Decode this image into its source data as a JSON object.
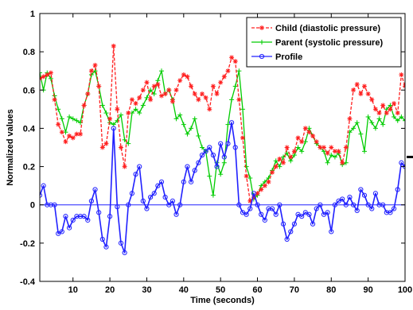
{
  "chart_data": {
    "type": "line",
    "title": "",
    "xlabel": "Time (seconds)",
    "ylabel": "Normalized values",
    "xlim": [
      1,
      100
    ],
    "ylim": [
      -0.4,
      1.0
    ],
    "xticks": [
      10,
      20,
      30,
      40,
      50,
      60,
      70,
      80,
      90,
      100
    ],
    "yticks": [
      -0.4,
      -0.2,
      0,
      0.2,
      0.4,
      0.6,
      0.8,
      1
    ],
    "ytick_labels": [
      "-0.4",
      "-0.2",
      "0",
      "0.2",
      "0.4",
      "0.6",
      "0.8",
      "1"
    ],
    "grid": false,
    "legend_position": "top-right",
    "baseline": 0,
    "colors": {
      "child": "#ff2020",
      "parent": "#00cc00",
      "profile": "#2020ff",
      "baseline": "#2020ff"
    },
    "series": [
      {
        "name": "Child (diastolic pressure)",
        "key": "child",
        "marker": "*",
        "style": "dashed",
        "x": [
          1,
          2,
          3,
          4,
          5,
          6,
          7,
          8,
          9,
          10,
          11,
          12,
          13,
          14,
          15,
          16,
          17,
          18,
          19,
          20,
          21,
          22,
          23,
          24,
          25,
          26,
          27,
          28,
          29,
          30,
          31,
          32,
          33,
          34,
          35,
          36,
          37,
          38,
          39,
          40,
          41,
          42,
          43,
          44,
          45,
          46,
          47,
          48,
          49,
          50,
          51,
          52,
          53,
          54,
          55,
          56,
          57,
          58,
          59,
          60,
          61,
          62,
          63,
          64,
          65,
          66,
          67,
          68,
          69,
          70,
          71,
          72,
          73,
          74,
          75,
          76,
          77,
          78,
          79,
          80,
          81,
          82,
          83,
          84,
          85,
          86,
          87,
          88,
          89,
          90,
          91,
          92,
          93,
          94,
          95,
          96,
          97,
          98,
          99,
          100
        ],
        "values": [
          0.66,
          0.67,
          0.68,
          0.69,
          0.55,
          0.42,
          0.38,
          0.33,
          0.36,
          0.35,
          0.37,
          0.37,
          0.52,
          0.58,
          0.7,
          0.73,
          0.62,
          0.3,
          0.32,
          0.45,
          0.83,
          0.5,
          0.3,
          0.2,
          0.48,
          0.55,
          0.53,
          0.56,
          0.6,
          0.64,
          0.55,
          0.62,
          0.63,
          0.57,
          0.58,
          0.6,
          0.54,
          0.6,
          0.65,
          0.68,
          0.67,
          0.62,
          0.58,
          0.55,
          0.58,
          0.56,
          0.5,
          0.62,
          0.58,
          0.64,
          0.67,
          0.7,
          0.77,
          0.75,
          0.55,
          0.35,
          0.15,
          0.02,
          0.04,
          0.06,
          0.08,
          0.1,
          0.12,
          0.17,
          0.2,
          0.24,
          0.22,
          0.3,
          0.25,
          0.28,
          0.35,
          0.33,
          0.4,
          0.38,
          0.36,
          0.33,
          0.3,
          0.3,
          0.27,
          0.3,
          0.28,
          0.28,
          0.22,
          0.3,
          0.45,
          0.6,
          0.63,
          0.58,
          0.62,
          0.58,
          0.55,
          0.5,
          0.48,
          0.52,
          0.48,
          0.5,
          0.53,
          0.48,
          0.68,
          0.62
        ]
      },
      {
        "name": "Parent (systolic pressure)",
        "key": "parent",
        "marker": "+",
        "style": "solid",
        "x": [
          1,
          2,
          3,
          4,
          5,
          6,
          7,
          8,
          9,
          10,
          11,
          12,
          13,
          14,
          15,
          16,
          17,
          18,
          19,
          20,
          21,
          22,
          23,
          24,
          25,
          26,
          27,
          28,
          29,
          30,
          31,
          32,
          33,
          34,
          35,
          36,
          37,
          38,
          39,
          40,
          41,
          42,
          43,
          44,
          45,
          46,
          47,
          48,
          49,
          50,
          51,
          52,
          53,
          54,
          55,
          56,
          57,
          58,
          59,
          60,
          61,
          62,
          63,
          64,
          65,
          66,
          67,
          68,
          69,
          70,
          71,
          72,
          73,
          74,
          75,
          76,
          77,
          78,
          79,
          80,
          81,
          82,
          83,
          84,
          85,
          86,
          87,
          88,
          89,
          90,
          91,
          92,
          93,
          94,
          95,
          96,
          97,
          98,
          99,
          100
        ],
        "values": [
          0.69,
          0.6,
          0.69,
          0.66,
          0.57,
          0.5,
          0.45,
          0.38,
          0.46,
          0.45,
          0.44,
          0.43,
          0.52,
          0.58,
          0.68,
          0.7,
          0.62,
          0.52,
          0.48,
          0.43,
          0.42,
          0.44,
          0.47,
          0.34,
          0.32,
          0.48,
          0.5,
          0.48,
          0.52,
          0.56,
          0.6,
          0.58,
          0.65,
          0.7,
          0.58,
          0.6,
          0.55,
          0.45,
          0.47,
          0.42,
          0.37,
          0.4,
          0.45,
          0.36,
          0.3,
          0.28,
          0.15,
          0.05,
          0.22,
          0.16,
          0.22,
          0.42,
          0.55,
          0.62,
          0.7,
          0.5,
          0.2,
          0.14,
          0.03,
          0.05,
          0.1,
          0.12,
          0.14,
          0.18,
          0.23,
          0.2,
          0.25,
          0.27,
          0.23,
          0.26,
          0.3,
          0.28,
          0.33,
          0.4,
          0.36,
          0.32,
          0.3,
          0.28,
          0.22,
          0.26,
          0.25,
          0.27,
          0.21,
          0.22,
          0.38,
          0.4,
          0.43,
          0.37,
          0.28,
          0.46,
          0.43,
          0.4,
          0.45,
          0.42,
          0.5,
          0.52,
          0.46,
          0.44,
          0.46,
          0.44
        ]
      },
      {
        "name": "Profile",
        "key": "profile",
        "marker": "o",
        "style": "solid",
        "x": [
          1,
          2,
          3,
          4,
          5,
          6,
          7,
          8,
          9,
          10,
          11,
          12,
          13,
          14,
          15,
          16,
          17,
          18,
          19,
          20,
          21,
          22,
          23,
          24,
          25,
          26,
          27,
          28,
          29,
          30,
          31,
          32,
          33,
          34,
          35,
          36,
          37,
          38,
          39,
          40,
          41,
          42,
          43,
          44,
          45,
          46,
          47,
          48,
          49,
          50,
          51,
          52,
          53,
          54,
          55,
          56,
          57,
          58,
          59,
          60,
          61,
          62,
          63,
          64,
          65,
          66,
          67,
          68,
          69,
          70,
          71,
          72,
          73,
          74,
          75,
          76,
          77,
          78,
          79,
          80,
          81,
          82,
          83,
          84,
          85,
          86,
          87,
          88,
          89,
          90,
          91,
          92,
          93,
          94,
          95,
          96,
          97,
          98,
          99,
          100
        ],
        "values": [
          0.05,
          0.1,
          0.0,
          0.0,
          0.0,
          -0.15,
          -0.14,
          -0.06,
          -0.12,
          -0.08,
          -0.06,
          -0.06,
          -0.06,
          -0.08,
          0.02,
          0.08,
          -0.04,
          -0.18,
          -0.22,
          -0.06,
          0.4,
          -0.01,
          -0.2,
          -0.25,
          0.0,
          0.06,
          0.16,
          0.2,
          0.02,
          -0.02,
          0.04,
          0.06,
          0.1,
          0.12,
          0.04,
          0.0,
          0.02,
          -0.05,
          0.0,
          0.12,
          0.2,
          0.12,
          0.18,
          0.22,
          0.26,
          0.28,
          0.3,
          0.26,
          0.2,
          0.32,
          0.25,
          0.32,
          0.43,
          0.3,
          0.0,
          -0.04,
          -0.05,
          -0.02,
          0.06,
          0.0,
          -0.05,
          -0.08,
          -0.02,
          -0.02,
          -0.05,
          0.0,
          -0.1,
          -0.18,
          -0.14,
          -0.1,
          -0.05,
          -0.06,
          -0.04,
          -0.05,
          -0.1,
          -0.02,
          0.0,
          -0.05,
          -0.04,
          -0.14,
          0.0,
          0.02,
          0.03,
          0.0,
          0.04,
          0.0,
          -0.03,
          0.08,
          0.05,
          0.0,
          -0.02,
          0.06,
          0.0,
          0.0,
          -0.04,
          -0.04,
          -0.02,
          0.08,
          0.22,
          0.2
        ]
      }
    ]
  }
}
